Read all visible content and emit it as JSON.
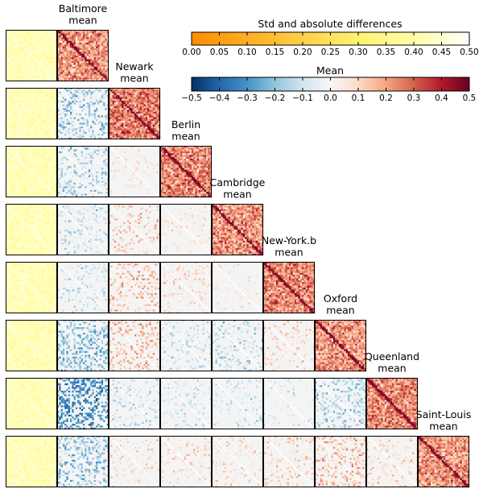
{
  "chart_data": {
    "type": "heatmap",
    "layout": "lower-triangular matrix grid of correlation heatmaps",
    "rows": [
      {
        "site": "Baltimore",
        "title_lines": [
          "Baltimore",
          "mean"
        ],
        "mean_tone": 0.22,
        "diffs": []
      },
      {
        "site": "Newark",
        "title_lines": [
          "Newark",
          "mean"
        ],
        "mean_tone": 0.26,
        "diffs": [
          -0.12
        ]
      },
      {
        "site": "Berlin",
        "title_lines": [
          "Berlin",
          "mean"
        ],
        "mean_tone": 0.24,
        "diffs": [
          -0.1,
          0.03
        ]
      },
      {
        "site": "Cambridge",
        "title_lines": [
          "Cambridge",
          "mean"
        ],
        "mean_tone": 0.22,
        "diffs": [
          -0.06,
          0.07,
          0.03
        ]
      },
      {
        "site": "New-York.b",
        "title_lines": [
          "New-York.b",
          "mean"
        ],
        "mean_tone": 0.24,
        "diffs": [
          -0.05,
          0.09,
          0.05,
          0.02
        ]
      },
      {
        "site": "Oxford",
        "title_lines": [
          "Oxford",
          "mean"
        ],
        "mean_tone": 0.22,
        "diffs": [
          -0.14,
          0.1,
          -0.06,
          -0.08,
          0.06
        ]
      },
      {
        "site": "Queenland",
        "title_lines": [
          "Queenland",
          "mean"
        ],
        "mean_tone": 0.24,
        "diffs": [
          -0.2,
          -0.06,
          -0.05,
          -0.04,
          -0.03,
          -0.1
        ]
      },
      {
        "site": "Saint-Louis",
        "title_lines": [
          "Saint-Louis",
          "mean"
        ],
        "mean_tone": 0.22,
        "diffs": [
          -0.12,
          0.04,
          0.05,
          0.05,
          0.06,
          0.1,
          0.06
        ]
      }
    ],
    "std_colorbar": {
      "label": "Std and absolute differences",
      "range": [
        0.0,
        0.5
      ],
      "tick_labels": [
        "0.00",
        "0.05",
        "0.10",
        "0.15",
        "0.20",
        "0.25",
        "0.30",
        "0.35",
        "0.40",
        "0.45",
        "0.50"
      ],
      "colormap": "YlOrRd reversed (orange at 0.00, pale yellow/white at 0.50)"
    },
    "mean_colorbar": {
      "label": "Mean",
      "range": [
        -0.5,
        0.5
      ],
      "tick_labels": [
        "−0.5",
        "−0.4",
        "−0.3",
        "−0.2",
        "−0.1",
        "0.0",
        "0.1",
        "0.2",
        "0.3",
        "0.4",
        "0.5"
      ],
      "colormap": "RdBu reversed (blue negative, white zero, dark red positive)"
    },
    "std_panel_tone": 0.42
  }
}
